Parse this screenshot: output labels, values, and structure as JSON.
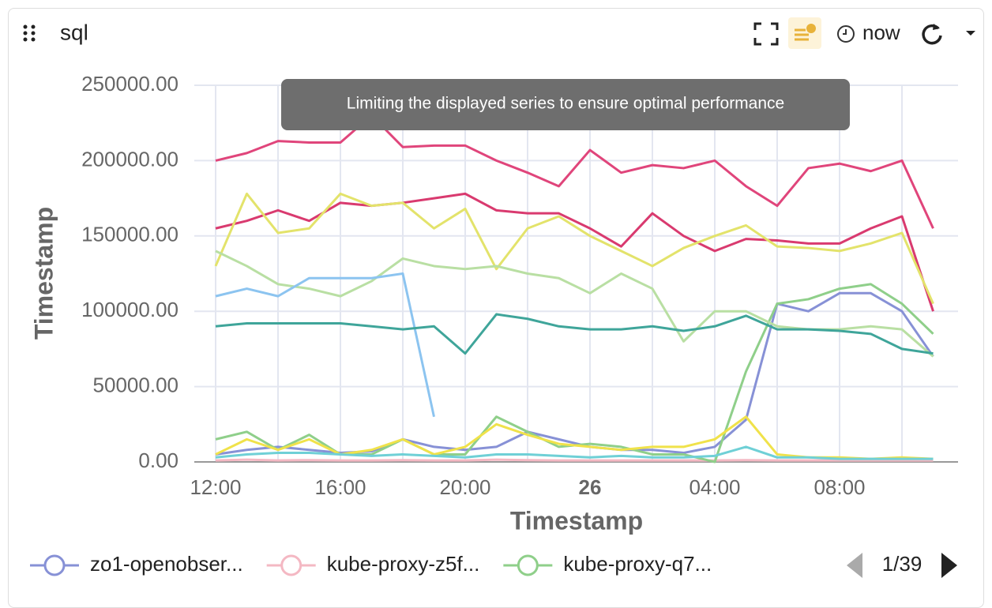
{
  "panel": {
    "title": "sql",
    "time_label": "now",
    "tooltip": "Limiting the displayed series to ensure optimal performance",
    "pagination": "1/39"
  },
  "chart_data": {
    "type": "line",
    "y_label": "Timestamp",
    "x_label": "Timestamp",
    "grid": true,
    "categories": [
      "12:00",
      null,
      null,
      null,
      "16:00",
      null,
      null,
      null,
      "20:00",
      null,
      null,
      null,
      "26",
      null,
      null,
      null,
      "04:00",
      null,
      null,
      null,
      "08:00",
      null,
      null,
      null
    ],
    "ylim": [
      0,
      250000
    ],
    "yticks": [
      {
        "value": 0,
        "label": "0.00"
      },
      {
        "value": 50000,
        "label": "50000.00"
      },
      {
        "value": 100000,
        "label": "100000.00"
      },
      {
        "value": 150000,
        "label": "150000.00"
      },
      {
        "value": 200000,
        "label": "200000.00"
      },
      {
        "value": 250000,
        "label": "250000.00"
      }
    ],
    "series": [
      {
        "name": "zo1-openobser...",
        "color": "#8791d6",
        "values": [
          5000,
          8000,
          10000,
          8000,
          6000,
          7000,
          15000,
          10000,
          8000,
          10000,
          20000,
          15000,
          10000,
          8000,
          8000,
          6000,
          10000,
          28000,
          105000,
          100000,
          112000,
          112000,
          100000,
          70000
        ]
      },
      {
        "name": "kube-proxy-z5f...",
        "color": "#f4b8c3",
        "values": [
          1000,
          1500,
          1000,
          1200,
          1000,
          1000,
          1200,
          1000,
          1000,
          1500,
          1200,
          1000,
          1000,
          1000,
          1000,
          1000,
          1000,
          1200,
          1000,
          1000,
          1000,
          1000,
          1000,
          1000
        ]
      },
      {
        "name": "kube-proxy-q7...",
        "color": "#8fcf8a",
        "values": [
          15000,
          20000,
          8000,
          18000,
          5000,
          5000,
          15000,
          5000,
          5000,
          30000,
          20000,
          10000,
          12000,
          10000,
          5000,
          5000,
          0,
          60000,
          105000,
          108000,
          115000,
          118000,
          105000,
          85000
        ]
      },
      {
        "color": "#e0457b",
        "values": [
          200000,
          205000,
          213000,
          212000,
          212000,
          230000,
          209000,
          210000,
          210000,
          200000,
          192000,
          183000,
          207000,
          192000,
          197000,
          195000,
          200000,
          183000,
          170000,
          195000,
          198000,
          193000,
          200000,
          155000
        ]
      },
      {
        "color": "#d93a6f",
        "values": [
          155000,
          160000,
          167000,
          160000,
          172000,
          170000,
          172000,
          175000,
          178000,
          167000,
          165000,
          165000,
          155000,
          143000,
          165000,
          150000,
          140000,
          148000,
          147000,
          145000,
          145000,
          155000,
          163000,
          100000
        ]
      },
      {
        "color": "#e3e36b",
        "values": [
          130000,
          178000,
          152000,
          155000,
          178000,
          170000,
          172000,
          155000,
          168000,
          128000,
          155000,
          163000,
          150000,
          140000,
          130000,
          142000,
          150000,
          157000,
          143000,
          142000,
          140000,
          145000,
          152000,
          105000
        ]
      },
      {
        "color": "#b9dfa3",
        "values": [
          140000,
          130000,
          118000,
          115000,
          110000,
          120000,
          135000,
          130000,
          128000,
          130000,
          125000,
          122000,
          112000,
          125000,
          115000,
          80000,
          100000,
          100000,
          90000,
          88000,
          88000,
          90000,
          88000,
          70000
        ]
      },
      {
        "color": "#8cc4f0",
        "values": [
          110000,
          115000,
          110000,
          122000,
          122000,
          122000,
          125000,
          30000,
          null,
          null,
          null,
          null,
          null,
          null,
          null,
          null,
          null,
          null,
          null,
          null,
          null,
          null,
          null,
          null
        ]
      },
      {
        "color": "#3fa59a",
        "values": [
          90000,
          92000,
          92000,
          92000,
          92000,
          90000,
          88000,
          90000,
          72000,
          98000,
          95000,
          90000,
          88000,
          88000,
          90000,
          87000,
          90000,
          97000,
          88000,
          88000,
          87000,
          85000,
          75000,
          72000
        ]
      },
      {
        "color": "#f0e24a",
        "values": [
          5000,
          15000,
          8000,
          15000,
          5000,
          8000,
          15000,
          5000,
          10000,
          25000,
          18000,
          12000,
          10000,
          8000,
          10000,
          10000,
          15000,
          30000,
          5000,
          3000,
          3000,
          2000,
          3000,
          2000
        ]
      },
      {
        "color": "#6fd0d6",
        "values": [
          3000,
          5000,
          6000,
          6000,
          5000,
          4000,
          5000,
          4000,
          3000,
          5000,
          5000,
          4000,
          3000,
          4000,
          3000,
          3000,
          4000,
          10000,
          3000,
          3000,
          2000,
          2000,
          2000,
          2000
        ]
      }
    ]
  }
}
